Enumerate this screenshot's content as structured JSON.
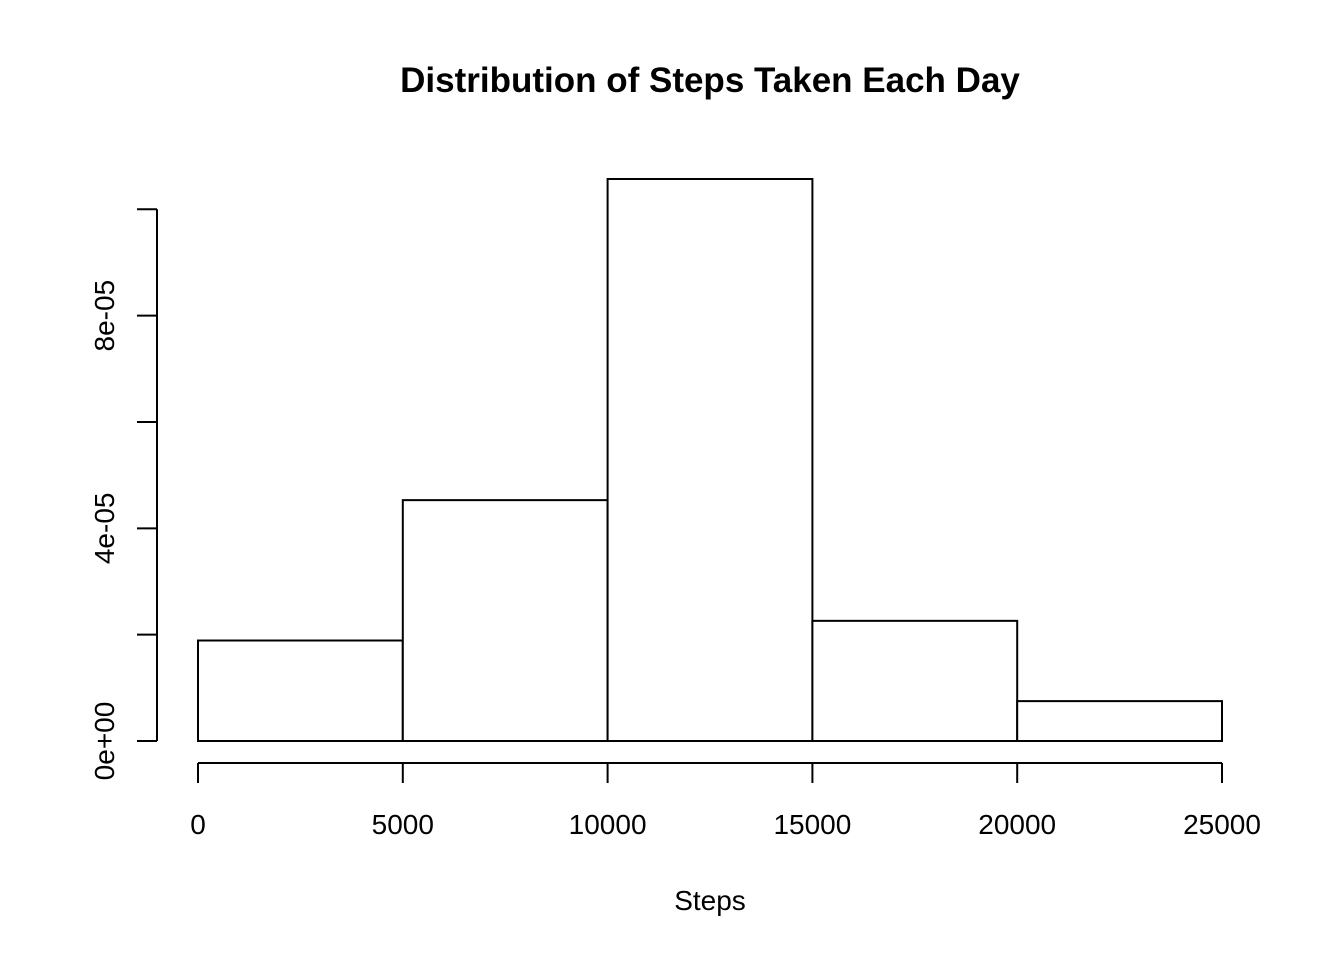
{
  "chart_data": {
    "type": "bar",
    "title": "Distribution of Steps Taken Each Day",
    "xlabel": "Steps",
    "ylabel": "",
    "bins": [
      {
        "start": 0,
        "end": 5000,
        "value": 1.89e-05
      },
      {
        "start": 5000,
        "end": 10000,
        "value": 4.53e-05
      },
      {
        "start": 10000,
        "end": 15000,
        "value": 0.0001057
      },
      {
        "start": 15000,
        "end": 20000,
        "value": 2.26e-05
      },
      {
        "start": 20000,
        "end": 25000,
        "value": 7.5e-06
      }
    ],
    "xlim": [
      0,
      25000
    ],
    "ylim": [
      0,
      0.0001057
    ],
    "x_ticks": [
      {
        "value": 0,
        "label": "0"
      },
      {
        "value": 5000,
        "label": "5000"
      },
      {
        "value": 10000,
        "label": "10000"
      },
      {
        "value": 15000,
        "label": "15000"
      },
      {
        "value": 20000,
        "label": "20000"
      },
      {
        "value": 25000,
        "label": "25000"
      }
    ],
    "y_ticks": [
      {
        "value": 0,
        "label": "0e+00"
      },
      {
        "value": 2e-05,
        "label": ""
      },
      {
        "value": 4e-05,
        "label": "4e-05"
      },
      {
        "value": 6e-05,
        "label": ""
      },
      {
        "value": 8e-05,
        "label": "8e-05"
      },
      {
        "value": 0.0001,
        "label": ""
      }
    ],
    "grid": false,
    "legend": "none",
    "colors": {
      "bar_fill": "#ffffff",
      "bar_stroke": "#000000",
      "text": "#000000"
    }
  }
}
